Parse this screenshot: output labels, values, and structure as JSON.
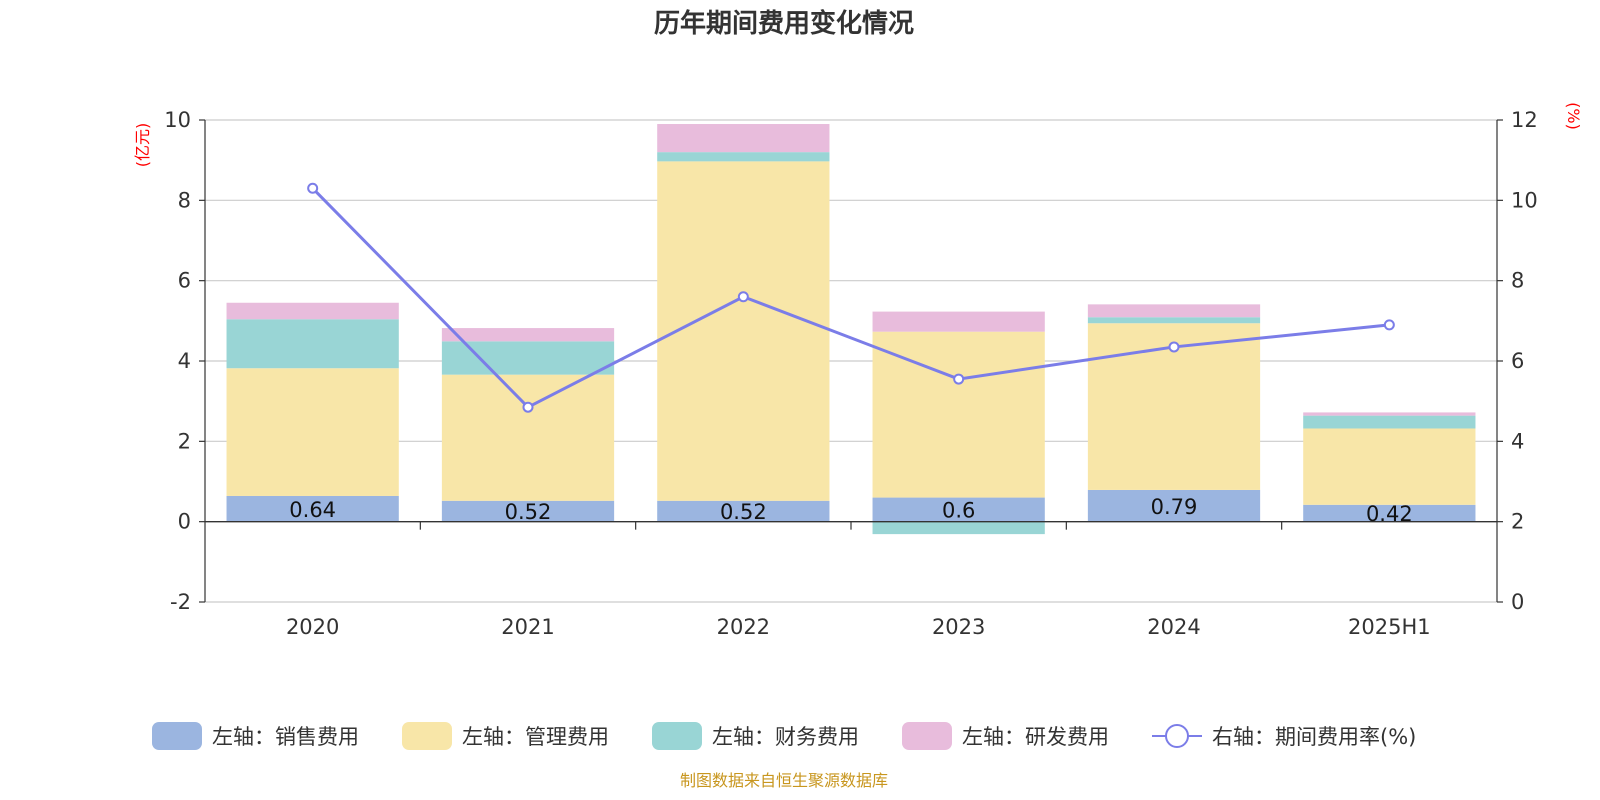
{
  "chart_data": {
    "type": "bar",
    "title": "历年期间费用变化情况",
    "categories": [
      "2020",
      "2021",
      "2022",
      "2023",
      "2024",
      "2025H1"
    ],
    "left_axis": {
      "unit": "(亿元)",
      "ylim": [
        -2,
        10
      ],
      "ticks": [
        "-2",
        "0",
        "2",
        "4",
        "6",
        "8",
        "10"
      ]
    },
    "right_axis": {
      "unit": "(%)",
      "ylim": [
        0,
        12
      ],
      "ticks": [
        "0",
        "2",
        "4",
        "6",
        "8",
        "10",
        "12"
      ]
    },
    "series": [
      {
        "name": "左轴：销售费用",
        "type": "bar",
        "stack": true,
        "color": "#9bb5e0",
        "values": [
          0.64,
          0.52,
          0.52,
          0.6,
          0.79,
          0.42
        ],
        "labels": [
          "0.64",
          "0.52",
          "0.52",
          "0.6",
          "0.79",
          "0.42"
        ]
      },
      {
        "name": "左轴：管理费用",
        "type": "bar",
        "stack": true,
        "color": "#f8e6a8",
        "values": [
          3.18,
          3.14,
          8.45,
          4.13,
          4.15,
          1.9
        ]
      },
      {
        "name": "左轴：财务费用",
        "type": "bar",
        "stack": true,
        "color": "#99d5d5",
        "values": [
          1.22,
          0.83,
          0.23,
          -0.31,
          0.15,
          0.32
        ]
      },
      {
        "name": "左轴：研发费用",
        "type": "bar",
        "stack": true,
        "color": "#e8bcdc",
        "values": [
          0.41,
          0.33,
          0.7,
          0.5,
          0.32,
          0.08
        ]
      },
      {
        "name": "右轴：期间费用率(%)",
        "type": "line",
        "axis": "right",
        "color": "#7b7de8",
        "values": [
          10.3,
          4.85,
          7.6,
          5.55,
          6.35,
          6.9
        ]
      }
    ],
    "grid": true,
    "legend_position": "bottom"
  },
  "source": "制图数据来自恒生聚源数据库"
}
